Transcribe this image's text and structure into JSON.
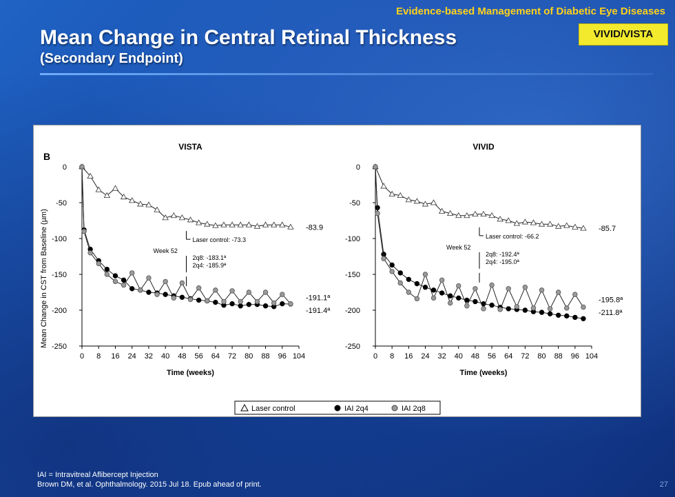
{
  "header": {
    "course_title": "Evidence-based Management of Diabetic Eye Diseases",
    "title": "Mean Change in Central Retinal Thickness",
    "subtitle": "(Secondary Endpoint)",
    "study_badge": "VIVID/VISTA"
  },
  "figure": {
    "panel_label": "B",
    "ylabel": "Mean Change in CST from Baseline (µm)",
    "legend": [
      "Laser control",
      "IAI 2q4",
      "IAI 2q8"
    ]
  },
  "colors": {
    "title_accent": "#ffd21a",
    "badge_bg": "#f3ea2e",
    "laser": "#ffffff",
    "iai2q4": "#000000",
    "iai2q8": "#999999"
  },
  "chart_data": [
    {
      "type": "line",
      "title": "VISTA",
      "xlabel": "Time (weeks)",
      "ylabel": "Mean Change in CST from Baseline (µm)",
      "xlim": [
        0,
        104
      ],
      "ylim": [
        -250,
        0
      ],
      "xticks": [
        0,
        8,
        16,
        24,
        32,
        40,
        48,
        56,
        64,
        72,
        80,
        88,
        96,
        104
      ],
      "yticks": [
        0,
        -50,
        -100,
        -150,
        -200,
        -250
      ],
      "series": [
        {
          "name": "Laser control",
          "marker": "triangle",
          "x": [
            0,
            4,
            8,
            12,
            16,
            20,
            24,
            28,
            32,
            36,
            40,
            44,
            48,
            52,
            56,
            60,
            64,
            68,
            72,
            76,
            80,
            84,
            88,
            92,
            96,
            100
          ],
          "y": [
            0,
            -13,
            -32,
            -40,
            -30,
            -42,
            -47,
            -52,
            -53,
            -60,
            -71,
            -68,
            -71,
            -74,
            -78,
            -80,
            -82,
            -81,
            -81,
            -81,
            -81,
            -83,
            -81,
            -81,
            -81,
            -83.9
          ]
        },
        {
          "name": "IAI 2q4",
          "marker": "filled-circle",
          "x": [
            0,
            1,
            4,
            8,
            12,
            16,
            20,
            24,
            28,
            32,
            36,
            40,
            44,
            48,
            52,
            56,
            60,
            64,
            68,
            72,
            76,
            80,
            84,
            88,
            92,
            96,
            100
          ],
          "y": [
            0,
            -88,
            -115,
            -131,
            -143,
            -152,
            -158,
            -170,
            -172,
            -175,
            -176,
            -178,
            -180,
            -182,
            -184,
            -186,
            -187,
            -189,
            -193,
            -191,
            -194,
            -192,
            -192,
            -194,
            -195,
            -191,
            -191.4
          ]
        },
        {
          "name": "IAI 2q8",
          "marker": "gray-circle",
          "x": [
            0,
            1,
            4,
            8,
            12,
            16,
            20,
            24,
            28,
            32,
            36,
            40,
            44,
            48,
            52,
            56,
            60,
            64,
            68,
            72,
            76,
            80,
            84,
            88,
            92,
            96,
            100
          ],
          "y": [
            0,
            -90,
            -120,
            -135,
            -150,
            -160,
            -165,
            -148,
            -172,
            -155,
            -178,
            -160,
            -183,
            -162,
            -185,
            -169,
            -187,
            -172,
            -188,
            -173,
            -188,
            -175,
            -188,
            -175,
            -190,
            -178,
            -191.1
          ]
        }
      ],
      "end_labels": [
        "-83.9",
        "-191.1ª",
        "-191.4ª"
      ],
      "annotations": {
        "week_label": "Week 52",
        "laser": "Laser control: -73.3",
        "q8": "2q8: -183.1ª",
        "q4": "2q4: -185.9ª"
      }
    },
    {
      "type": "line",
      "title": "VIVID",
      "xlabel": "Time (weeks)",
      "ylabel": "",
      "xlim": [
        0,
        104
      ],
      "ylim": [
        -250,
        0
      ],
      "xticks": [
        0,
        8,
        16,
        24,
        32,
        40,
        48,
        56,
        64,
        72,
        80,
        88,
        96,
        104
      ],
      "yticks": [
        0,
        -50,
        -100,
        -150,
        -200,
        -250
      ],
      "series": [
        {
          "name": "Laser control",
          "marker": "triangle",
          "x": [
            0,
            4,
            8,
            12,
            16,
            20,
            24,
            28,
            32,
            36,
            40,
            44,
            48,
            52,
            56,
            60,
            64,
            68,
            72,
            76,
            80,
            84,
            88,
            92,
            96,
            100
          ],
          "y": [
            0,
            -27,
            -38,
            -40,
            -46,
            -48,
            -52,
            -50,
            -62,
            -65,
            -68,
            -68,
            -66,
            -66,
            -68,
            -73,
            -75,
            -79,
            -77,
            -78,
            -80,
            -80,
            -83,
            -82,
            -84,
            -85.7
          ]
        },
        {
          "name": "IAI 2q4",
          "marker": "filled-circle",
          "x": [
            0,
            1,
            4,
            8,
            12,
            16,
            20,
            24,
            28,
            32,
            36,
            40,
            44,
            48,
            52,
            56,
            60,
            64,
            68,
            72,
            76,
            80,
            84,
            88,
            92,
            96,
            100
          ],
          "y": [
            0,
            -57,
            -122,
            -137,
            -148,
            -157,
            -163,
            -168,
            -172,
            -176,
            -180,
            -183,
            -186,
            -188,
            -191,
            -193,
            -196,
            -198,
            -199,
            -200,
            -202,
            -203,
            -205,
            -207,
            -208,
            -210,
            -211.8
          ]
        },
        {
          "name": "IAI 2q8",
          "marker": "gray-circle",
          "x": [
            0,
            1,
            4,
            8,
            12,
            16,
            20,
            24,
            28,
            32,
            36,
            40,
            44,
            48,
            52,
            56,
            60,
            64,
            68,
            72,
            76,
            80,
            84,
            88,
            92,
            96,
            100
          ],
          "y": [
            0,
            -65,
            -128,
            -146,
            -162,
            -175,
            -184,
            -150,
            -183,
            -158,
            -190,
            -166,
            -194,
            -170,
            -198,
            -165,
            -199,
            -170,
            -195,
            -168,
            -197,
            -172,
            -198,
            -175,
            -197,
            -178,
            -195.8
          ]
        }
      ],
      "end_labels": [
        "-85.7",
        "-195.8ª",
        "-211.8ª"
      ],
      "annotations": {
        "week_label": "Week 52",
        "laser": "Laser control: -66.2",
        "q8": "2q8: -192.4ª",
        "q4": "2q4: -195.0ª"
      }
    }
  ],
  "footnotes": {
    "abbrev": "IAI = Intravitreal Aflibercept Injection",
    "citation": "Brown DM, et al. Ophthalmology. 2015 Jul 18. Epub ahead of print."
  },
  "page_number": "27"
}
